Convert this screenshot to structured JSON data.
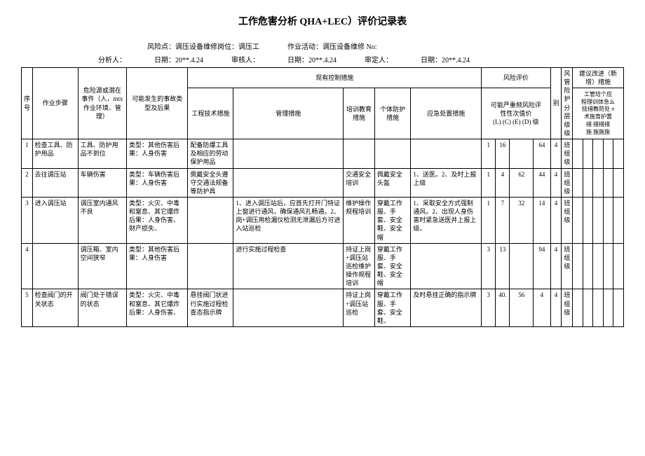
{
  "title": "工作危害分析 QHA+LEC）评价记录表",
  "meta": {
    "risk_point_label": "风险点：",
    "risk_point": "调压设备维修岗位：调压工",
    "activity_label": "作业活动：",
    "activity": "调压设备维修 No:",
    "analyst_label": "分析人：",
    "date_label": "日期：",
    "date_analyst": "20**.4.24",
    "reviewer_label": "审核人：",
    "date_reviewer": "20**.4.24",
    "approver_label": "审定人：",
    "date_approver": "20**.4.24"
  },
  "headers": {
    "seq": "序号",
    "step": "作业步骤",
    "hazard": "危险源或潜在事件（人，mtx作业环境、管理）",
    "accident": "可能发生的事故类型及后果",
    "controls": "现有控制措施",
    "eng": "工程技术措施",
    "mgmt": "管理措施",
    "edu": "培训教育措施",
    "ppe": "个体防护措施",
    "emg": "应急处置措施",
    "eval": "风险评价",
    "lcvd_top": "可能严重频风险评",
    "lcvd_mid": "性性次值价",
    "lcvd_bot": "(L) (C) (E) (D) 级",
    "lvl_extra": "别",
    "risk_tier": "风管险护",
    "tier_mid": "分层级级",
    "suggest": "建议改进（新增）措施",
    "sug_top": "工管培个应",
    "sug_mid1": "程理训体急么",
    "sug_mid2": "技措教防处 π",
    "sug_bot1": "术施育护置",
    "sug_bot2": "措   措措措",
    "sug_bot3": "施   施施施"
  },
  "rows": [
    {
      "seq": "1",
      "step": "检查工具、防护用品",
      "hazard": "工具、防护用品不到位",
      "accident": "类型：其他伤害后果：人身伤害",
      "eng": "配备防爆工具及相应的劳动保护用品",
      "mgmt": "",
      "edu": "",
      "ppe": "",
      "emg": "",
      "L": "1",
      "C": "16",
      "E": "",
      "D": "64",
      "lvl": "4",
      "tier": "班组级"
    },
    {
      "seq": "2",
      "step": "去往调压站",
      "hazard": "车辆伤害",
      "accident": "类型：车辆伤害后果：人身伤害",
      "eng": "佩戴安全头遵守交通法规备等防护具",
      "mgmt": "",
      "edu": "交通安全培训",
      "ppe": "佩戴安全头盔",
      "emg": "1、送医。2、及时上报上级",
      "L": "1",
      "C": "4",
      "E": "62",
      "D": "44",
      "lvl": "4",
      "tier": "班组级"
    },
    {
      "seq": "3",
      "step": "进入调压站",
      "hazard": "调压室内通风不良",
      "accident": "类型：火灾、中毒和窒息、其它爆炸 后果：人身伤害、财产损失、",
      "eng": "",
      "mgmt": "1、进入调压站后，应首先打开门特证上窗进行通风，确保通风孔畅通。2、岗+调压用检漏仪检测无泄漏后方可进入站巡检",
      "edu": "维护操作规程培训",
      "ppe": "穿戴工作服、手套、安全鞋、安全帽",
      "emg": "1、采取安全方式强制通风。2、出现人身伤害时紧急送医并上报上级。",
      "L": "1",
      "C": "7",
      "E": "32",
      "D": "14",
      "lvl": "4",
      "tier": "班组级"
    },
    {
      "seq": "4",
      "step": "",
      "hazard": "调压箱、室内空间狭窄",
      "accident": "类型：其他伤害后果：人身伤害",
      "eng": "",
      "mgmt": "进行实施过程检查",
      "edu": "持证上岗+调压站巡检维护操作规程培训",
      "ppe": "穿戴工作服、手套、安全鞋、安全帽",
      "emg": "",
      "L": "3",
      "C": "13",
      "E": "",
      "D": "94",
      "lvl": "4",
      "tier": "班组级"
    },
    {
      "seq": "5",
      "step": "检查阀门的开关状态",
      "hazard": "阀门处于错误的状态",
      "accident": "类型：火灾、中毒和窒息、其它爆炸 后果：人身伤害、",
      "eng": "悬挂阀门状进行实施过程检查态指示牌",
      "mgmt": "",
      "edu": "持证上岗+调压站巡检",
      "ppe": "穿戴工作服、手套、安全鞋、",
      "emg": "及时悬挂正确的指示牌",
      "L": "3",
      "C": "40.",
      "E": "56",
      "D": "4",
      "lvl": "4",
      "tier": "班组级"
    }
  ]
}
